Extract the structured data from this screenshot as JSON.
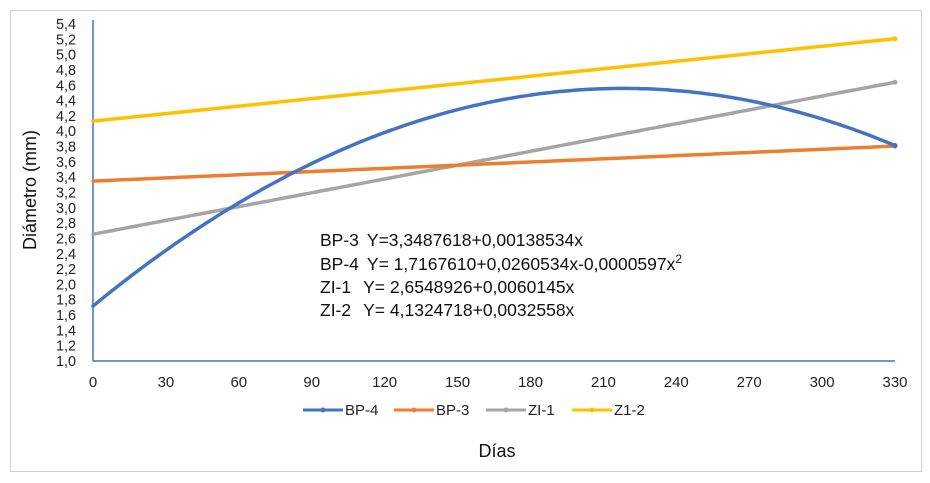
{
  "chart_data": {
    "type": "line",
    "xlabel": "Días",
    "ylabel": "Diámetro (mm)",
    "xlim": [
      0,
      330
    ],
    "ylim": [
      1.0,
      5.4
    ],
    "x_ticks": [
      "0",
      "30",
      "60",
      "90",
      "120",
      "150",
      "180",
      "210",
      "240",
      "270",
      "300",
      "330"
    ],
    "y_ticks": [
      "1,0",
      "1,2",
      "1,4",
      "1,6",
      "1,8",
      "2,0",
      "2,2",
      "2,4",
      "2,6",
      "2,8",
      "3,0",
      "3,2",
      "3,4",
      "3,6",
      "3,8",
      "4,0",
      "4,2",
      "4,4",
      "4,6",
      "4,8",
      "5,0",
      "5,2",
      "5,4"
    ],
    "grid": false,
    "legend_position": "bottom",
    "x": [
      0,
      30,
      60,
      90,
      120,
      150,
      180,
      210,
      240,
      270,
      300,
      330
    ],
    "series": [
      {
        "name": "BP-4",
        "color": "#4472C4",
        "coefficients": [
          1.716761,
          0.0260534,
          -5.97e-05
        ],
        "values": [
          1.717,
          2.445,
          3.065,
          3.578,
          3.983,
          4.282,
          4.472,
          4.555,
          4.531,
          4.399,
          4.16,
          3.813
        ]
      },
      {
        "name": "BP-3",
        "color": "#ED7D31",
        "coefficients": [
          3.3487618,
          0.00138534,
          0
        ],
        "values": [
          3.349,
          3.39,
          3.432,
          3.473,
          3.515,
          3.557,
          3.598,
          3.64,
          3.681,
          3.723,
          3.764,
          3.806
        ]
      },
      {
        "name": "ZI-1",
        "color": "#A5A5A5",
        "coefficients": [
          2.6548926,
          0.0060145,
          0
        ],
        "values": [
          2.655,
          2.835,
          3.016,
          3.196,
          3.377,
          3.557,
          3.738,
          3.918,
          4.098,
          4.279,
          4.459,
          4.64
        ]
      },
      {
        "name": "Z1-2",
        "color": "#FFC000",
        "coefficients": [
          4.1324718,
          0.0032558,
          0
        ],
        "values": [
          4.132,
          4.23,
          4.328,
          4.425,
          4.523,
          4.621,
          4.718,
          4.816,
          4.914,
          5.012,
          5.109,
          5.207
        ]
      }
    ],
    "annotations": [
      {
        "label": "BP-3",
        "equation": "Y=3,3487618+0,00138534x"
      },
      {
        "label": "BP-4",
        "equation": "Y= 1,7167610+0,0260534x-0,0000597x",
        "superscript": "2"
      },
      {
        "label": "ZI-1",
        "equation": "Y= 2,6548926+0,0060145x"
      },
      {
        "label": "ZI-2",
        "equation": "Y= 4,1324718+0,0032558x"
      }
    ],
    "axis_color": "#4472C4"
  }
}
